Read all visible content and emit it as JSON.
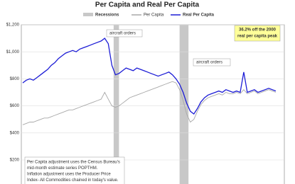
{
  "chart_data": {
    "type": "line",
    "title": "Per Capita and Real Per Capita",
    "recession_label": "Recessions",
    "recessions": [
      [
        25.5,
        27
      ],
      [
        44,
        46.5
      ]
    ],
    "series": [
      {
        "name": "Per Capita",
        "color": "#a8a8a8",
        "values": [
          460,
          470,
          480,
          480,
          490,
          500,
          510,
          510,
          520,
          530,
          540,
          550,
          560,
          570,
          570,
          580,
          590,
          600,
          610,
          620,
          630,
          640,
          650,
          700,
          650,
          600,
          590,
          600,
          620,
          640,
          660,
          670,
          680,
          690,
          700,
          710,
          720,
          730,
          740,
          750,
          760,
          770,
          780,
          770,
          720,
          640,
          540,
          480,
          500,
          560,
          610,
          640,
          660,
          670,
          680,
          690,
          680,
          700,
          690,
          690,
          700,
          690,
          720,
          690,
          700,
          710,
          690,
          700,
          710,
          720,
          710,
          700
        ]
      },
      {
        "name": "Real Per Capita",
        "color": "#1c1cd6",
        "values": [
          770,
          790,
          800,
          790,
          810,
          830,
          850,
          870,
          900,
          920,
          950,
          970,
          990,
          1000,
          1010,
          1000,
          1020,
          1030,
          1040,
          1050,
          1060,
          1070,
          1080,
          1100,
          1060,
          900,
          830,
          840,
          860,
          880,
          870,
          860,
          880,
          870,
          860,
          850,
          840,
          830,
          820,
          830,
          840,
          850,
          830,
          800,
          760,
          700,
          620,
          560,
          540,
          580,
          630,
          660,
          680,
          690,
          700,
          710,
          700,
          720,
          710,
          700,
          710,
          700,
          850,
          700,
          710,
          720,
          700,
          710,
          720,
          730,
          720,
          710
        ]
      }
    ],
    "ylim": [
      200,
      1200
    ],
    "yticks": [
      {
        "value": 200,
        "label": "$200"
      },
      {
        "value": 400,
        "label": "$400"
      },
      {
        "value": 600,
        "label": "$600"
      },
      {
        "value": 800,
        "label": "$800"
      },
      {
        "value": 1000,
        "label": "$1,000"
      },
      {
        "value": 1200,
        "label": "$1,200"
      }
    ],
    "grid": true,
    "annotations": [
      "aircraft orders",
      "aircraft orders"
    ],
    "callout": [
      "36.2% off the 2000",
      "real per capita peak"
    ],
    "note": [
      "Per Capita adjustment uses the Census Bureau's",
      "mid-month estimate series POPTHM.",
      "Inflation adjustment uses the Producer Price",
      "Index- All Commodities chained in today's value."
    ]
  }
}
